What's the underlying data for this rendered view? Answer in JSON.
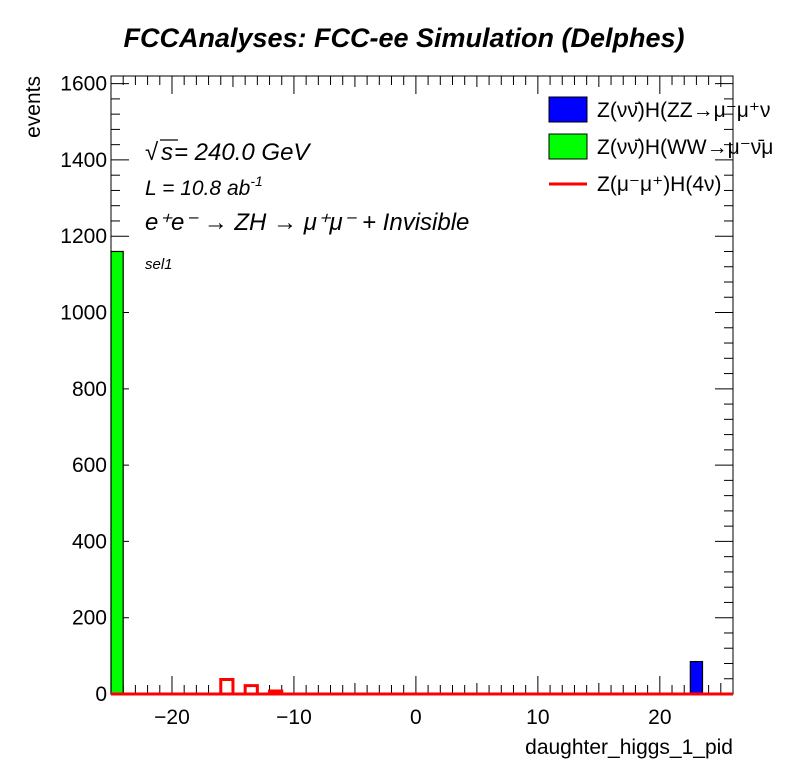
{
  "chart_data": {
    "type": "bar",
    "title": "FCCAnalyses: FCC-ee Simulation (Delphes)",
    "xlabel": "daughter_higgs_1_pid",
    "ylabel": "events",
    "xlim": [
      -25,
      26
    ],
    "ylim": [
      0,
      1620
    ],
    "x_ticks": [
      -20,
      -10,
      0,
      10,
      20
    ],
    "y_ticks": [
      0,
      200,
      400,
      600,
      800,
      1000,
      1200,
      1400,
      1600
    ],
    "annotations": {
      "sqrt_s": "√s = 240.0 GeV",
      "sqrt_symbol": "√",
      "sqrt_s_var": "s",
      "sqrt_s_value": " = 240.0 GeV",
      "lumi_text": "L = 10.8 ab",
      "lumi_exp": "-1",
      "process": "e⁺e⁻ → ZH → μ⁺μ⁻ + Invisible",
      "selection": "sel1"
    },
    "series": [
      {
        "name": "Z(νν̄)H(ZZ→μ⁻μ⁺ν",
        "color": "#0000ff",
        "style": "filled",
        "bins": [
          {
            "x0": 22.5,
            "x1": 23.5,
            "value": 85
          }
        ]
      },
      {
        "name": "Z(νν̄)H(WW→μ⁻ν̄μ",
        "color": "#00ff00",
        "style": "filled",
        "bins": [
          {
            "x0": -25,
            "x1": -24,
            "value": 1160
          }
        ]
      },
      {
        "name": "Z(μ⁻μ⁺)H(4ν)",
        "color": "#ff0000",
        "style": "line",
        "bins": [
          {
            "x0": -16,
            "x1": -15,
            "value": 38
          },
          {
            "x0": -14,
            "x1": -13,
            "value": 22
          },
          {
            "x0": -12,
            "x1": -11,
            "value": 8
          }
        ]
      }
    ],
    "legend_position": "top-right"
  }
}
